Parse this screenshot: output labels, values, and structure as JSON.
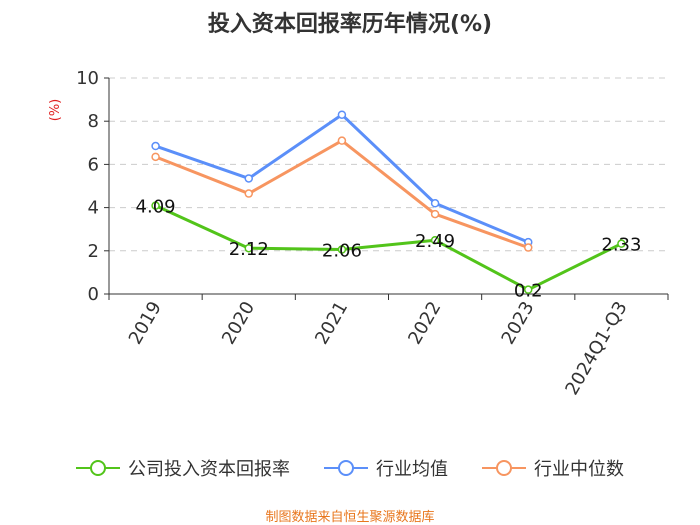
{
  "chart_data": {
    "type": "line",
    "title": "投入资本回报率历年情况(%)",
    "ylabel": "(%)",
    "categories": [
      "2019",
      "2020",
      "2021",
      "2022",
      "2023",
      "2024Q1-Q3"
    ],
    "ylim": [
      0,
      10
    ],
    "yticks": [
      "0",
      "2",
      "4",
      "6",
      "8",
      "10"
    ],
    "grid": true,
    "legend_position": "bottom",
    "series": [
      {
        "name": "公司投入资本回报率",
        "color": "#52c41a",
        "values": [
          4.09,
          2.12,
          2.06,
          2.49,
          0.2,
          2.33
        ],
        "labels": [
          "4.09",
          "2.12",
          "2.06",
          "2.49",
          "0.2",
          "2.33"
        ]
      },
      {
        "name": "行业均值",
        "color": "#5b8ff9",
        "values": [
          6.85,
          5.35,
          8.3,
          4.2,
          2.4,
          null
        ]
      },
      {
        "name": "行业中位数",
        "color": "#f79560",
        "values": [
          6.35,
          4.65,
          7.1,
          3.7,
          2.15,
          null
        ]
      }
    ]
  },
  "footer": {
    "source": "制图数据来自恒生聚源数据库",
    "source_color": "#e8771e"
  },
  "colors": {
    "axis": "#333333",
    "grid": "#cccccc",
    "ylabel": "#e02020"
  }
}
